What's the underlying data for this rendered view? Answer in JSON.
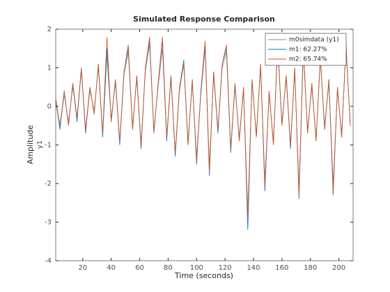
{
  "chart_data": {
    "type": "line",
    "title": "Simulated Response Comparison",
    "xlabel": "Time (seconds)",
    "ylabel": "Amplitude",
    "output_name": "y1",
    "x": [
      1,
      4,
      7,
      10,
      13,
      16,
      19,
      22,
      25,
      28,
      31,
      34,
      37,
      40,
      43,
      46,
      49,
      52,
      55,
      58,
      61,
      64,
      67,
      70,
      73,
      76,
      79,
      82,
      85,
      88,
      91,
      94,
      97,
      100,
      103,
      106,
      109,
      112,
      115,
      118,
      121,
      124,
      127,
      130,
      133,
      136,
      139,
      142,
      145,
      148,
      151,
      154,
      157,
      160,
      163,
      166,
      169,
      172,
      175,
      178,
      181,
      184,
      187,
      190,
      193,
      196,
      199,
      202,
      205,
      208
    ],
    "series": [
      {
        "name": "m0simdata (y1)",
        "color": "#8c8c8c",
        "values": [
          0.1,
          -0.5,
          0.3,
          -0.4,
          0.5,
          -0.3,
          0.9,
          -0.6,
          0.4,
          -0.1,
          1.0,
          -0.7,
          1.3,
          -0.3,
          0.6,
          -0.9,
          0.8,
          1.4,
          -0.5,
          0.7,
          -1.0,
          0.9,
          1.6,
          -0.6,
          0.5,
          1.5,
          -0.8,
          0.7,
          -1.2,
          0.4,
          1.1,
          -0.9,
          0.6,
          -1.3,
          0.3,
          1.5,
          -1.5,
          0.8,
          -0.6,
          1.0,
          1.4,
          -1.1,
          0.5,
          -0.8,
          0.4,
          -2.7,
          0.6,
          -0.7,
          1.0,
          -1.9,
          0.3,
          -0.9,
          1.5,
          -0.4,
          0.7,
          -1.0,
          0.9,
          -2.1,
          1.4,
          -0.6,
          0.5,
          -0.8,
          1.2,
          -0.5,
          0.6,
          -2.0,
          0.4,
          -0.7,
          1.5,
          -0.4
        ]
      },
      {
        "name": "m1: 62.27%",
        "color": "#0072bd",
        "values": [
          0.2,
          -0.6,
          0.4,
          -0.5,
          0.6,
          -0.4,
          1.0,
          -0.7,
          0.5,
          -0.2,
          1.1,
          -0.8,
          1.5,
          -0.4,
          0.7,
          -1.0,
          0.9,
          1.5,
          -0.6,
          0.8,
          -1.1,
          1.0,
          1.7,
          -0.7,
          0.6,
          1.7,
          -0.9,
          0.8,
          -1.3,
          0.5,
          1.2,
          -1.0,
          0.7,
          -1.5,
          0.4,
          1.6,
          -1.8,
          0.9,
          -0.7,
          1.1,
          1.5,
          -1.2,
          0.6,
          -0.9,
          0.5,
          -3.2,
          0.7,
          -0.8,
          1.1,
          -2.2,
          0.4,
          -1.0,
          1.6,
          -0.5,
          0.8,
          -1.1,
          1.0,
          -2.4,
          1.5,
          -0.7,
          0.6,
          -0.9,
          1.3,
          -0.6,
          0.7,
          -2.3,
          0.5,
          -0.8,
          1.6,
          -0.5
        ]
      },
      {
        "name": "m2: 65.74%",
        "color": "#d95319",
        "values": [
          0.2,
          -0.5,
          0.4,
          -0.5,
          0.6,
          -0.3,
          1.0,
          -0.6,
          0.5,
          -0.2,
          1.1,
          -0.7,
          1.8,
          -0.4,
          0.7,
          -0.9,
          0.9,
          1.6,
          -0.6,
          0.8,
          -1.0,
          1.0,
          1.8,
          -0.7,
          0.6,
          1.8,
          -0.8,
          0.8,
          -1.2,
          0.5,
          1.1,
          -1.0,
          0.7,
          -1.4,
          0.4,
          1.7,
          -1.7,
          0.9,
          -0.6,
          1.1,
          1.6,
          -1.1,
          0.6,
          -0.9,
          0.5,
          -2.9,
          0.7,
          -0.8,
          1.1,
          -2.1,
          0.4,
          -1.0,
          1.7,
          -0.5,
          0.8,
          -1.0,
          1.0,
          -2.3,
          1.6,
          -0.7,
          0.6,
          -0.9,
          1.3,
          -0.6,
          0.7,
          -2.2,
          0.5,
          -0.8,
          1.6,
          -0.5
        ]
      }
    ],
    "xlim": [
      1,
      210
    ],
    "xticks": [
      20,
      40,
      60,
      80,
      100,
      120,
      140,
      160,
      180,
      200
    ],
    "ylim": [
      -4,
      2
    ],
    "yticks": [
      -4,
      -3,
      -2,
      -1,
      0,
      1,
      2
    ],
    "grid": false,
    "legend": "northeast"
  }
}
